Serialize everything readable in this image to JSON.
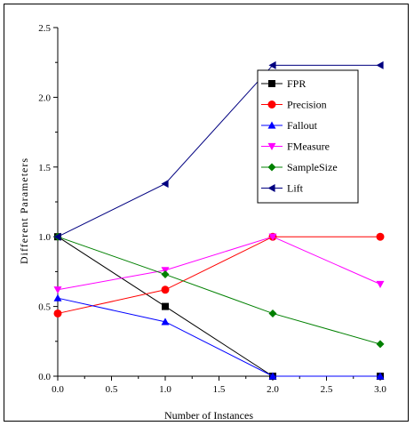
{
  "chart_data": {
    "type": "line",
    "title": "",
    "xlabel": "Number of Instances",
    "ylabel": "Different Parameters",
    "xlim": [
      0.0,
      3.0
    ],
    "ylim": [
      0.0,
      2.5
    ],
    "xticks": [
      "0.0",
      "0.5",
      "1.0",
      "1.5",
      "2.0",
      "2.5",
      "3.0"
    ],
    "yticks": [
      "0.0",
      "0.5",
      "1.0",
      "1.5",
      "2.0",
      "2.5"
    ],
    "x": [
      0,
      1,
      2,
      3
    ],
    "grid": false,
    "legend_position": "top-right",
    "series": [
      {
        "name": "FPR",
        "color": "#000000",
        "marker": "square",
        "values": [
          1.0,
          0.5,
          0.0,
          0.0
        ]
      },
      {
        "name": "Precision",
        "color": "#ff0000",
        "marker": "circle",
        "values": [
          0.45,
          0.62,
          1.0,
          1.0
        ]
      },
      {
        "name": "Fallout",
        "color": "#0000ff",
        "marker": "triangle-up",
        "values": [
          0.56,
          0.39,
          0.0,
          0.0
        ]
      },
      {
        "name": "FMeasure",
        "color": "#ff00ff",
        "marker": "triangle-down",
        "values": [
          0.62,
          0.76,
          1.0,
          0.66
        ]
      },
      {
        "name": "SampleSize",
        "color": "#008000",
        "marker": "diamond",
        "values": [
          1.0,
          0.73,
          0.45,
          0.23
        ]
      },
      {
        "name": "Lift",
        "color": "#000080",
        "marker": "triangle-left",
        "values": [
          1.0,
          1.38,
          2.23,
          2.23
        ]
      }
    ]
  }
}
